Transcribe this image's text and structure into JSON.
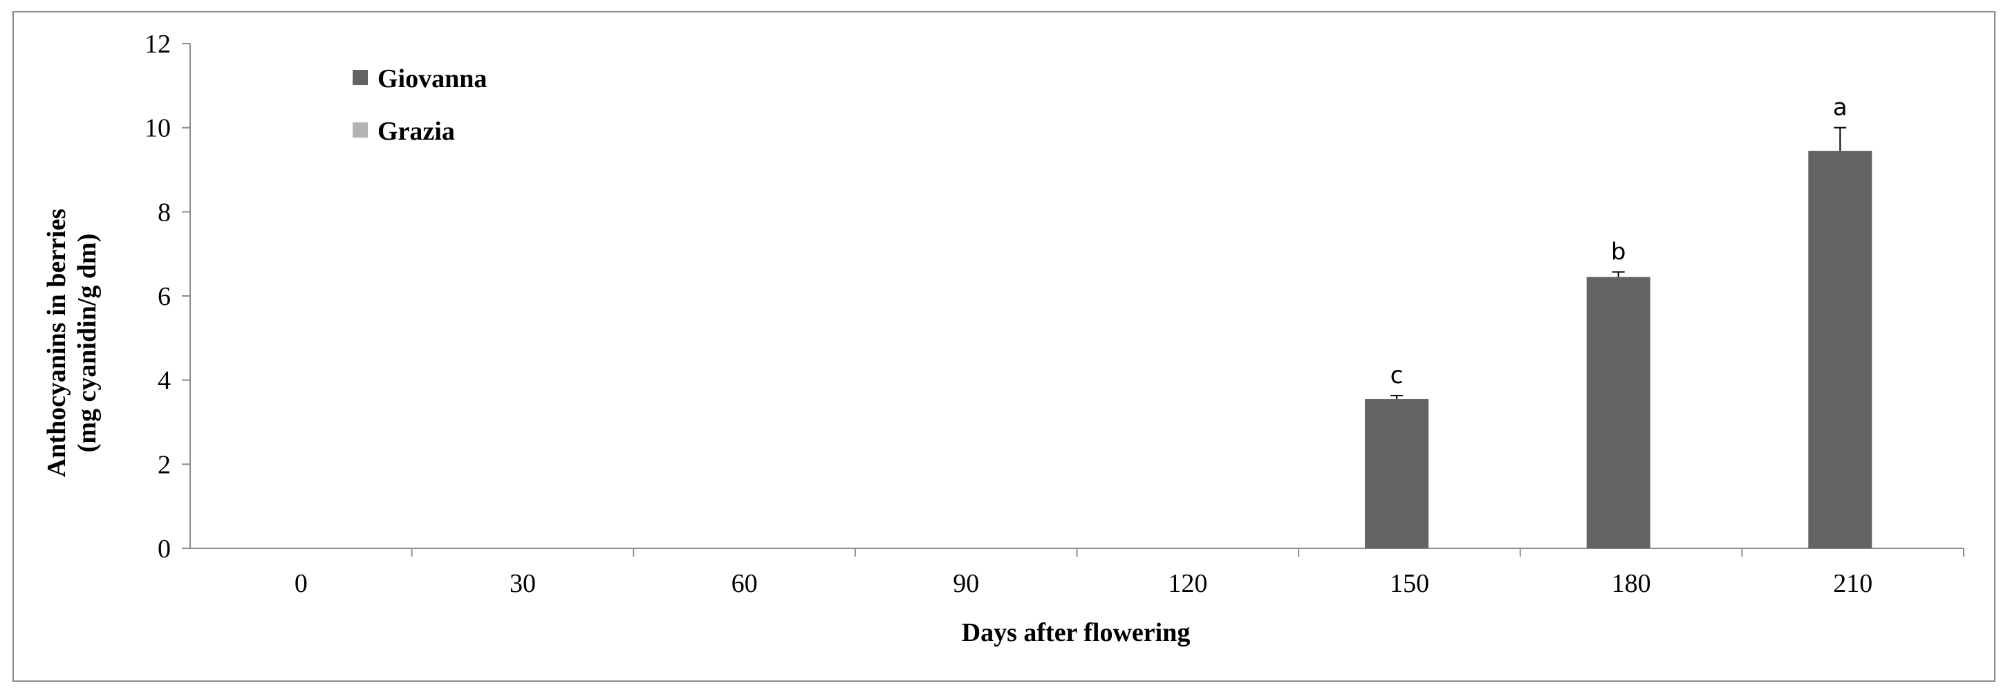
{
  "chart_data": {
    "type": "bar",
    "categories": [
      "0",
      "30",
      "60",
      "90",
      "120",
      "150",
      "180",
      "210"
    ],
    "series": [
      {
        "name": "Giovanna",
        "color": "#636363",
        "values": [
          null,
          null,
          null,
          null,
          null,
          3.55,
          6.45,
          9.45
        ],
        "errors": [
          null,
          null,
          null,
          null,
          null,
          0.08,
          0.12,
          0.55
        ],
        "labels": [
          "",
          "",
          "",
          "",
          "",
          "c",
          "b",
          "a"
        ]
      },
      {
        "name": "Grazia",
        "color": "#b3b3b3",
        "values": [
          null,
          null,
          null,
          null,
          null,
          null,
          null,
          null
        ],
        "errors": [
          null,
          null,
          null,
          null,
          null,
          null,
          null,
          null
        ],
        "labels": [
          "",
          "",
          "",
          "",
          "",
          "",
          "",
          ""
        ]
      }
    ],
    "xlabel": "Days after flowering",
    "ylabel_line1": "Anthocyanins  in berries",
    "ylabel_line2": "(mg cyanidin/g dm)",
    "ylim": [
      0,
      12
    ],
    "yticks": [
      "0",
      "2",
      "4",
      "6",
      "8",
      "10",
      "12"
    ],
    "legend_position": "top-left",
    "grid": false
  }
}
